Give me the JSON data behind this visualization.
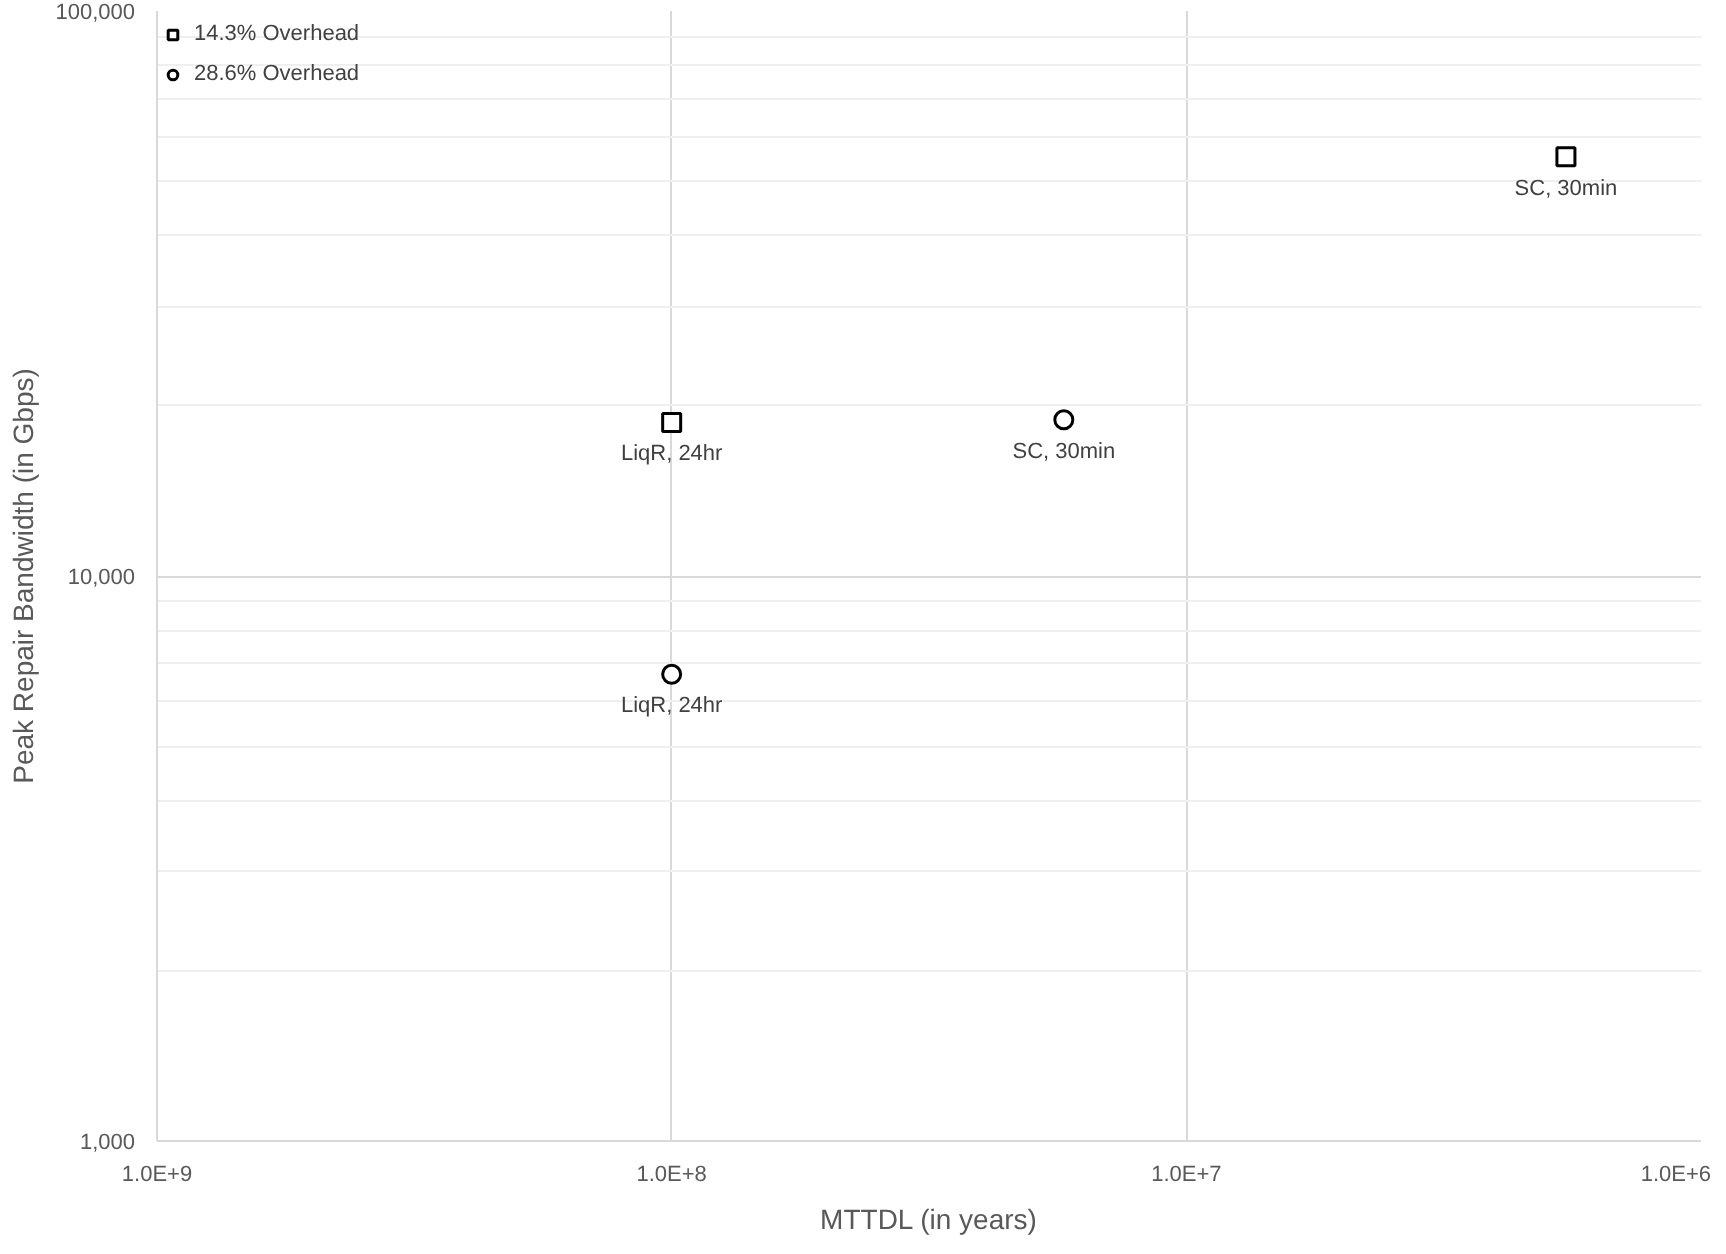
{
  "chart_data": {
    "type": "scatter",
    "xlabel": "MTTDL (in years)",
    "ylabel": "Peak Repair Bandwidth (in Gbps)",
    "log": "xy",
    "xlim": [
      1000000000,
      1000000
    ],
    "ylim": [
      1000,
      100000
    ],
    "xticks": [
      {
        "value": 1000000000,
        "label": "1.0E+9"
      },
      {
        "value": 100000000,
        "label": "1.0E+8"
      },
      {
        "value": 10000000,
        "label": "1.0E+7"
      },
      {
        "value": 1000000,
        "label": "1.0E+6"
      }
    ],
    "yticks": [
      {
        "value": 1000,
        "label": "1,000"
      },
      {
        "value": 10000,
        "label": "10,000"
      },
      {
        "value": 100000,
        "label": "100,000"
      }
    ],
    "grid": true,
    "legend": "top left",
    "series": [
      {
        "name": "14.3% Overhead",
        "color": "#000000",
        "marker": "square",
        "x": [
          100000000,
          1830000
        ],
        "values": [
          18700,
          55200
        ]
      },
      {
        "name": "28.6% Overhead",
        "color": "#000000",
        "marker": "circle",
        "x": [
          100000000,
          17300000
        ],
        "values": [
          6700,
          18900
        ]
      }
    ],
    "annotations": [
      {
        "text": "LiqR, 24hr",
        "x": 100000000,
        "y": 18700
      },
      {
        "text": "SC, 30min",
        "x": 1830000,
        "y": 55200
      },
      {
        "text": "LiqR, 24hr",
        "x": 100000000,
        "y": 6700
      },
      {
        "text": "SC, 30min",
        "x": 17300000,
        "y": 18900
      }
    ]
  }
}
